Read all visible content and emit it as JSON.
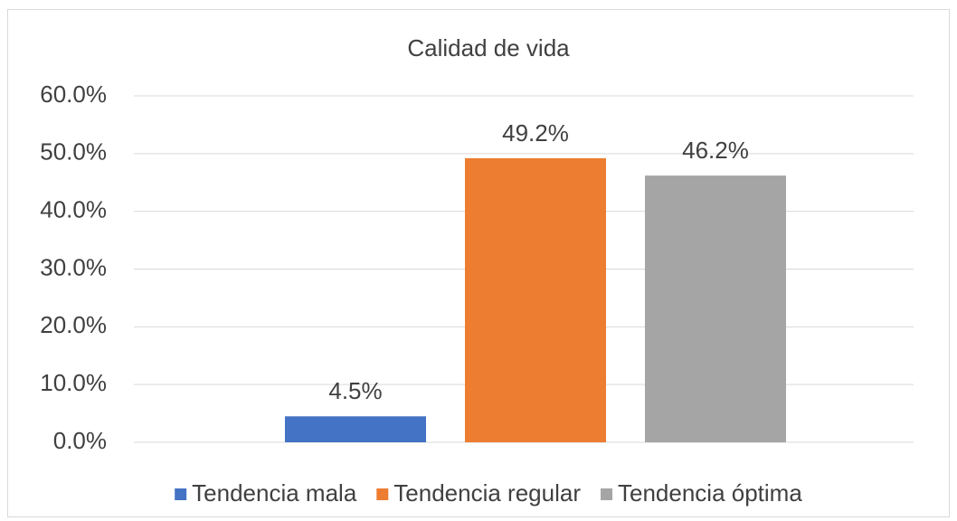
{
  "chart_data": {
    "type": "bar",
    "title": "Calidad de vida",
    "series": [
      {
        "name": "Tendencia mala",
        "color": "#4472c4",
        "values": [
          4.5
        ],
        "value_labels": [
          "4.5%"
        ]
      },
      {
        "name": "Tendencia regular",
        "color": "#ed7d31",
        "values": [
          49.2
        ],
        "value_labels": [
          "49.2%"
        ]
      },
      {
        "name": "Tendencia óptima",
        "color": "#a5a5a5",
        "values": [
          46.2
        ],
        "value_labels": [
          "46.2%"
        ]
      }
    ],
    "ylim": [
      0,
      60
    ],
    "yticks": [
      {
        "value": 0,
        "label": "0.0%"
      },
      {
        "value": 10,
        "label": "10.0%"
      },
      {
        "value": 20,
        "label": "20.0%"
      },
      {
        "value": 30,
        "label": "30.0%"
      },
      {
        "value": 40,
        "label": "40.0%"
      },
      {
        "value": 50,
        "label": "50.0%"
      },
      {
        "value": 60,
        "label": "60.0%"
      }
    ],
    "grid": true,
    "legend": "bottom"
  }
}
